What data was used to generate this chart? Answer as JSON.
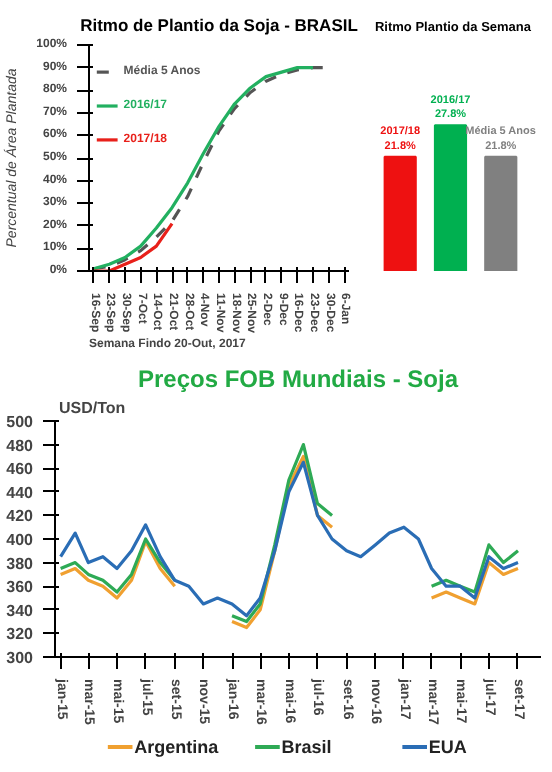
{
  "chart_data": [
    {
      "type": "line",
      "title": "Ritmo de Plantio da Soja - BRASIL",
      "ylabel": "Percentual de Área Plantada",
      "annotations": [
        "Semana Findo 20-Out, 2017"
      ],
      "categories": [
        "16-Sep",
        "23-Sep",
        "30-Sep",
        "7-Oct",
        "14-Oct",
        "21-Oct",
        "28-Oct",
        "4-Nov",
        "11-Nov",
        "18-Nov",
        "25-Nov",
        "2-Dec",
        "9-Dec",
        "16-Dec",
        "23-Dec",
        "30-Dec",
        "6-Jan"
      ],
      "series": [
        {
          "name": "Média 5 Anos",
          "color": "#555555",
          "line_style": "dashed",
          "values": [
            1,
            2,
            5,
            9,
            15,
            22,
            33,
            48,
            62,
            72,
            79,
            84,
            87,
            89,
            90,
            90,
            null
          ]
        },
        {
          "name": "2016/17",
          "color": "#22b060",
          "values": [
            1,
            3,
            6,
            11,
            19,
            28,
            39,
            52,
            64,
            74,
            81,
            86,
            88,
            90,
            90,
            null,
            null
          ]
        },
        {
          "name": "2017/18",
          "color": "#e8201a",
          "values": [
            0,
            0,
            3,
            6,
            11,
            21,
            null,
            null,
            null,
            null,
            null,
            null,
            null,
            null,
            null,
            null,
            null
          ]
        }
      ],
      "ylim": [
        0,
        100
      ],
      "yticks": [
        {
          "value": 0,
          "label": "0%"
        },
        {
          "value": 10,
          "label": "10%"
        },
        {
          "value": 20,
          "label": "20%"
        },
        {
          "value": 30,
          "label": "30%"
        },
        {
          "value": 40,
          "label": "40%"
        },
        {
          "value": 50,
          "label": "50%"
        },
        {
          "value": 60,
          "label": "60%"
        },
        {
          "value": 70,
          "label": "70%"
        },
        {
          "value": 80,
          "label": "80%"
        },
        {
          "value": 90,
          "label": "90%"
        },
        {
          "value": 100,
          "label": "100%"
        }
      ],
      "grid": false,
      "legend": "top left"
    },
    {
      "type": "bar",
      "title": "Ritmo Plantio da Semana",
      "categories": [
        "2017/18",
        "2016/17",
        "Média 5 Anos"
      ],
      "values": [
        21.8,
        27.8,
        21.8
      ],
      "colors": [
        "#ee1111",
        "#00b050",
        "#808080"
      ],
      "value_labels": [
        "21.8%",
        "27.8%",
        "21.8%"
      ]
    },
    {
      "type": "line",
      "title": "Preços FOB Mundiais - Soja",
      "ylabel": "USD/Ton",
      "x": [
        "2015-01",
        "2015-02",
        "2015-03",
        "2015-04",
        "2015-05",
        "2015-06",
        "2015-07",
        "2015-08",
        "2015-09",
        "2015-10",
        "2015-11",
        "2015-12",
        "2016-01",
        "2016-02",
        "2016-03",
        "2016-04",
        "2016-05",
        "2016-06",
        "2016-07",
        "2016-08",
        "2016-09",
        "2016-10",
        "2016-11",
        "2016-12",
        "2017-01",
        "2017-02",
        "2017-03",
        "2017-04",
        "2017-05",
        "2017-06",
        "2017-07",
        "2017-08",
        "2017-09"
      ],
      "series": [
        {
          "name": "Argentina",
          "color": "#f0a030",
          "values": [
            370,
            375,
            365,
            360,
            350,
            365,
            398,
            375,
            360,
            null,
            null,
            null,
            330,
            325,
            340,
            390,
            445,
            470,
            420,
            410,
            null,
            null,
            null,
            null,
            null,
            null,
            350,
            355,
            350,
            345,
            380,
            370,
            375
          ]
        },
        {
          "name": "Brasil",
          "color": "#2eaa55",
          "values": [
            375,
            380,
            370,
            365,
            355,
            370,
            400,
            380,
            365,
            null,
            null,
            null,
            335,
            330,
            345,
            395,
            450,
            480,
            430,
            420,
            null,
            null,
            null,
            null,
            null,
            null,
            360,
            365,
            360,
            355,
            395,
            380,
            390
          ]
        },
        {
          "name": "EUA",
          "color": "#2a6db5",
          "values": [
            385,
            405,
            380,
            385,
            375,
            390,
            412,
            385,
            365,
            360,
            345,
            350,
            345,
            335,
            350,
            390,
            440,
            465,
            420,
            400,
            390,
            385,
            395,
            405,
            410,
            400,
            375,
            360,
            360,
            350,
            385,
            375,
            380
          ]
        }
      ],
      "xlim": [
        "2014-12-20",
        "2017-10-20"
      ],
      "xticks": [
        {
          "value": "2015-01",
          "label": "jan-15"
        },
        {
          "value": "2015-03",
          "label": "mar-15"
        },
        {
          "value": "2015-05",
          "label": "mai-15"
        },
        {
          "value": "2015-07",
          "label": "jul-15"
        },
        {
          "value": "2015-09",
          "label": "set-15"
        },
        {
          "value": "2015-11",
          "label": "nov-15"
        },
        {
          "value": "2016-01",
          "label": "jan-16"
        },
        {
          "value": "2016-03",
          "label": "mar-16"
        },
        {
          "value": "2016-05",
          "label": "mai-16"
        },
        {
          "value": "2016-07",
          "label": "jul-16"
        },
        {
          "value": "2016-09",
          "label": "set-16"
        },
        {
          "value": "2016-11",
          "label": "nov-16"
        },
        {
          "value": "2017-01",
          "label": "jan-17"
        },
        {
          "value": "2017-03",
          "label": "mar-17"
        },
        {
          "value": "2017-05",
          "label": "mai-17"
        },
        {
          "value": "2017-07",
          "label": "jul-17"
        },
        {
          "value": "2017-09",
          "label": "set-17"
        }
      ],
      "ylim": [
        300,
        500
      ],
      "yticks": [
        300,
        320,
        340,
        360,
        380,
        400,
        420,
        440,
        460,
        480,
        500
      ],
      "grid": false,
      "legend": "bottom"
    }
  ]
}
